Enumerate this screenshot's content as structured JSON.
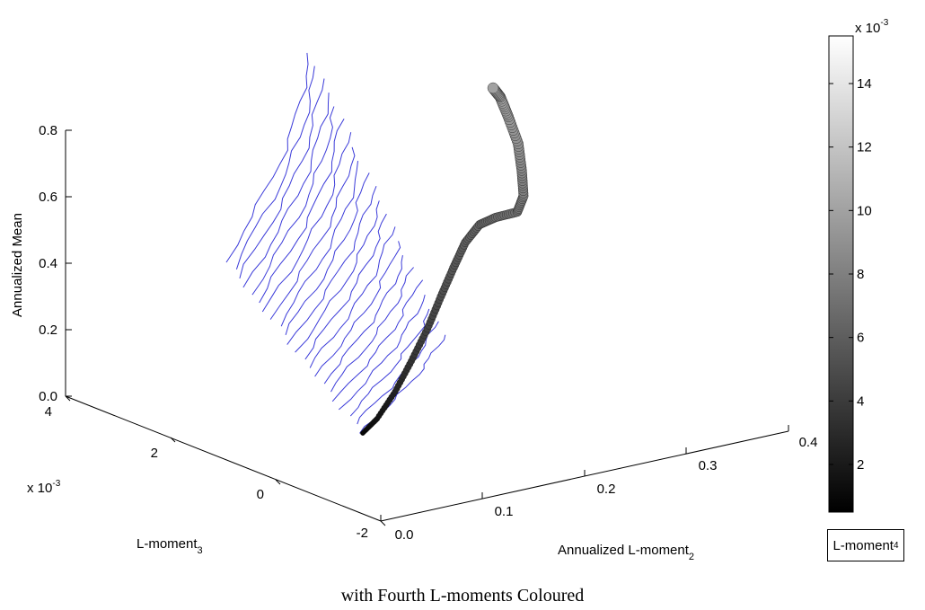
{
  "caption": "with Fourth L-moments Coloured",
  "chart_data": {
    "type": "scatter",
    "subtype": "3d-surface-with-colored-scatter",
    "axes": {
      "z": {
        "label": "Annualized Mean",
        "ticks": [
          "0.0",
          "0.2",
          "0.4",
          "0.6",
          "0.8"
        ],
        "range": [
          0,
          0.8
        ]
      },
      "x": {
        "label_main": "Annualized L-moment",
        "label_sub": "2",
        "ticks": [
          "0.0",
          "0.1",
          "0.2",
          "0.3",
          "0.4"
        ],
        "range": [
          0,
          0.4
        ]
      },
      "y": {
        "label_main": "L-moment",
        "label_sub": "3",
        "ticks": [
          "4",
          "2",
          "0",
          "-2"
        ],
        "exponent": "x 10",
        "exponent_power": "-3",
        "range": [
          -2,
          4
        ]
      }
    },
    "colorbar": {
      "ticks": [
        "2",
        "4",
        "6",
        "8",
        "10",
        "12",
        "14"
      ],
      "exponent": "x 10",
      "exponent_power": "-3",
      "range": [
        0.5,
        15.5
      ],
      "label_main": "L-moment",
      "label_sub": "4",
      "colormap": "gray"
    },
    "surface_color": "#3b3bd9",
    "grid": false
  }
}
